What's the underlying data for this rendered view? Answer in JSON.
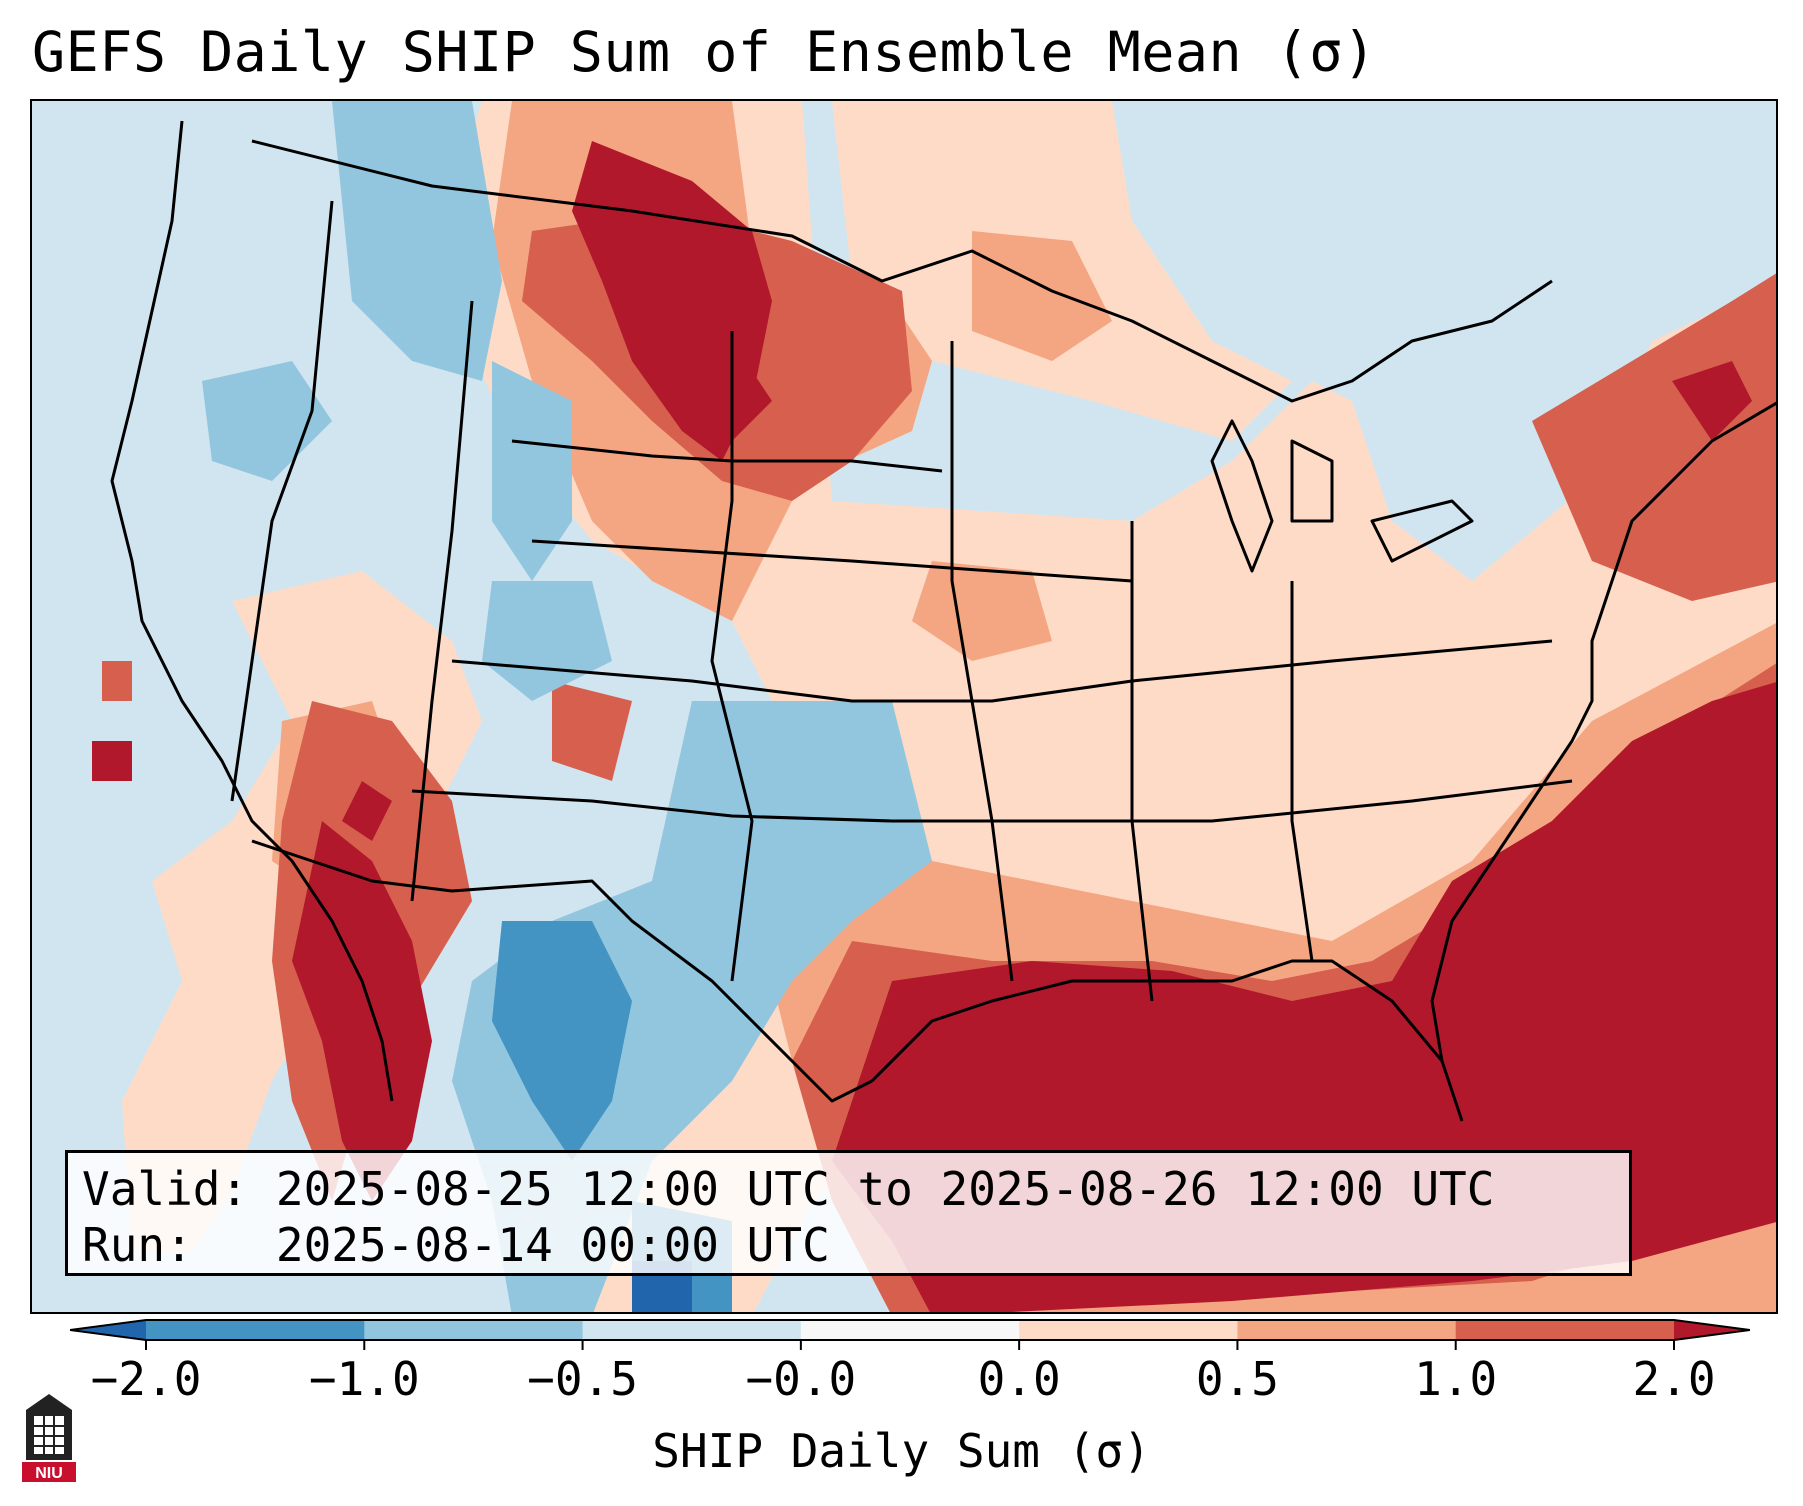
{
  "title": "GEFS Daily SHIP Sum of Ensemble Mean (σ)",
  "info": {
    "valid_label": "Valid:",
    "valid_value": "2025-08-25 12:00 UTC to 2025-08-26 12:00 UTC",
    "run_label": "Run:",
    "run_value": "2025-08-14 00:00 UTC"
  },
  "colorbar": {
    "label": "SHIP Daily Sum (σ)",
    "ticks": [
      "−2.0",
      "−1.0",
      "−0.5",
      "−0.0",
      "0.0",
      "0.5",
      "1.0",
      "2.0"
    ],
    "colors": [
      "#2166ac",
      "#4393c3",
      "#92c5de",
      "#d1e5f0",
      "#f7f7f7",
      "#fddbc7",
      "#f4a582",
      "#d6604d",
      "#b2182b"
    ],
    "extend": "both"
  },
  "logo": {
    "text": "NIU"
  },
  "map": {
    "region": "Contiguous United States",
    "background_color": "#d1e5f0",
    "anomaly_regions": [
      {
        "name": "northern-plains",
        "color": "#b2182b"
      },
      {
        "name": "gulf-of-mexico",
        "color": "#b2182b"
      },
      {
        "name": "western-atlantic",
        "color": "#b2182b"
      },
      {
        "name": "gulf-of-california",
        "color": "#b2182b"
      },
      {
        "name": "new-england",
        "color": "#d6604d"
      },
      {
        "name": "southwest",
        "color": "#d6604d"
      },
      {
        "name": "great-lakes",
        "color": "#fddbc7"
      },
      {
        "name": "southern-rockies",
        "color": "#4393c3"
      },
      {
        "name": "texas",
        "color": "#92c5de"
      }
    ]
  }
}
